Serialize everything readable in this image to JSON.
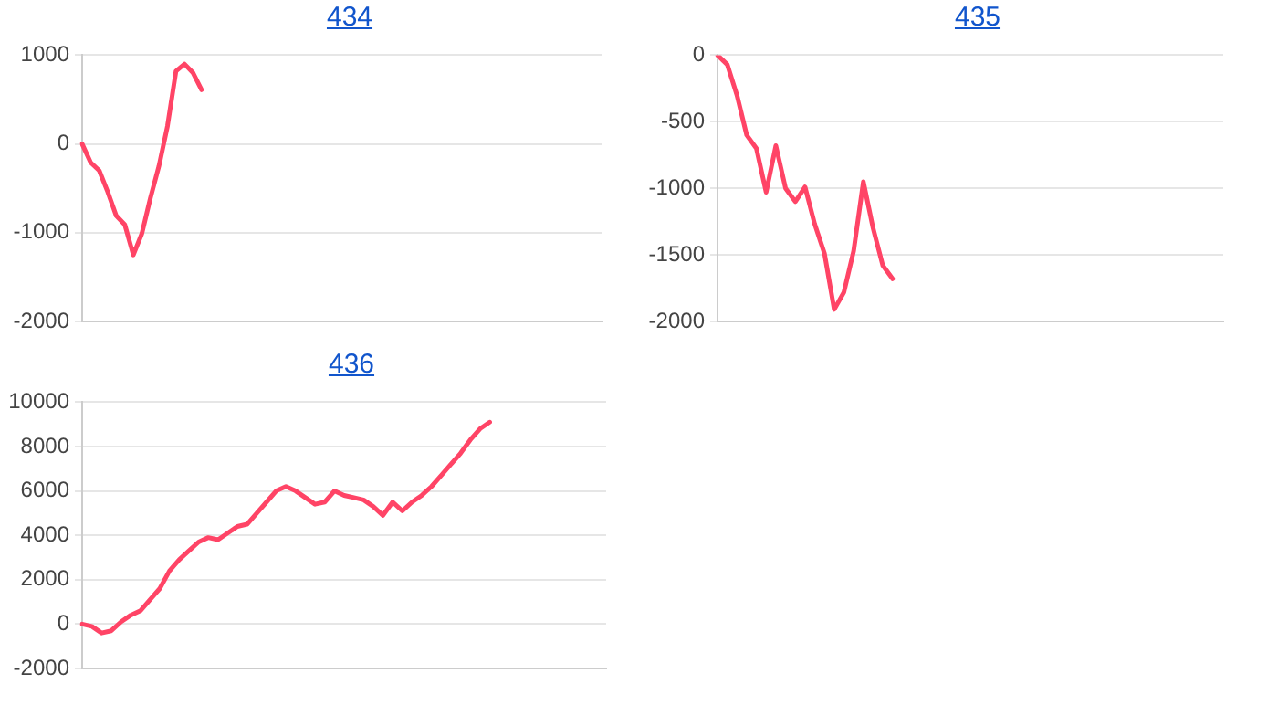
{
  "chart_data": [
    {
      "type": "line",
      "title": "434",
      "categories": [
        null,
        null,
        null,
        null,
        null,
        null,
        null,
        null,
        null,
        null,
        null,
        null,
        null,
        null,
        null,
        null,
        null,
        null,
        null,
        null,
        null,
        null,
        null,
        null,
        null,
        null,
        null,
        null,
        null,
        null,
        null,
        null,
        null,
        null,
        null,
        null,
        null,
        null,
        null,
        null,
        null,
        null,
        null,
        null,
        null,
        null,
        null,
        null,
        null,
        null,
        null,
        null,
        null,
        null,
        null,
        null,
        null,
        null,
        null,
        null,
        null,
        null
      ],
      "series": [
        {
          "color": "#ff4466",
          "values": [
            0,
            -210,
            -300,
            -540,
            -810,
            -910,
            -1250,
            -1010,
            -610,
            -250,
            200,
            820,
            900,
            800,
            610,
            null,
            null,
            null,
            null,
            null,
            null,
            null,
            null,
            null,
            null,
            null,
            null,
            null,
            null,
            null,
            null,
            null,
            null,
            null,
            null,
            null,
            null,
            null,
            null,
            null,
            null,
            null,
            null,
            null,
            null,
            null,
            null,
            null,
            null,
            null,
            null,
            null,
            null,
            null,
            null,
            null,
            null,
            null,
            null,
            null,
            null,
            null
          ]
        }
      ],
      "ylim": [
        -2000,
        1000
      ],
      "yticks": [
        -2000,
        -1000,
        0,
        1000
      ],
      "grid": "y",
      "tick_labels": "y",
      "legend": false,
      "marker": "none"
    },
    {
      "type": "line",
      "title": "435",
      "categories": [
        null,
        null,
        null,
        null,
        null,
        null,
        null,
        null,
        null,
        null,
        null,
        null,
        null,
        null,
        null,
        null,
        null,
        null,
        null,
        null,
        null,
        null,
        null,
        null,
        null,
        null,
        null,
        null,
        null,
        null,
        null,
        null,
        null,
        null,
        null,
        null,
        null,
        null,
        null,
        null,
        null,
        null,
        null,
        null,
        null,
        null,
        null,
        null,
        null,
        null,
        null,
        null,
        null
      ],
      "series": [
        {
          "color": "#ff4466",
          "values": [
            0,
            -70,
            -300,
            -600,
            -700,
            -1030,
            -680,
            -1000,
            -1100,
            -990,
            -1270,
            -1490,
            -1910,
            -1780,
            -1470,
            -950,
            -1300,
            -1580,
            -1680,
            null,
            null,
            null,
            null,
            null,
            null,
            null,
            null,
            null,
            null,
            null,
            null,
            null,
            null,
            null,
            null,
            null,
            null,
            null,
            null,
            null,
            null,
            null,
            null,
            null,
            null,
            null,
            null,
            null,
            null,
            null,
            null,
            null,
            null
          ]
        }
      ],
      "ylim": [
        -2000,
        0
      ],
      "yticks": [
        -2000,
        -1500,
        -1000,
        -500,
        0
      ],
      "grid": "y",
      "tick_labels": "y",
      "legend": false,
      "marker": "none"
    },
    {
      "type": "line",
      "title": "436",
      "categories": [
        null,
        null,
        null,
        null,
        null,
        null,
        null,
        null,
        null,
        null,
        null,
        null,
        null,
        null,
        null,
        null,
        null,
        null,
        null,
        null,
        null,
        null,
        null,
        null,
        null,
        null,
        null,
        null,
        null,
        null,
        null,
        null,
        null,
        null,
        null,
        null,
        null,
        null,
        null,
        null,
        null,
        null,
        null,
        null,
        null,
        null,
        null,
        null,
        null,
        null,
        null,
        null,
        null,
        null,
        null
      ],
      "series": [
        {
          "color": "#ff4466",
          "values": [
            0,
            -100,
            -400,
            -300,
            100,
            400,
            600,
            1100,
            1600,
            2400,
            2900,
            3300,
            3700,
            3900,
            3800,
            4100,
            4400,
            4500,
            5000,
            5500,
            6000,
            6200,
            6000,
            5700,
            5400,
            5500,
            6000,
            5800,
            5700,
            5600,
            5300,
            4900,
            5500,
            5100,
            5500,
            5800,
            6200,
            6700,
            7200,
            7700,
            8300,
            8800,
            9100,
            null,
            null,
            null,
            null,
            null,
            null,
            null,
            null,
            null,
            null,
            null,
            null
          ]
        }
      ],
      "ylim": [
        -2000,
        10000
      ],
      "yticks": [
        -2000,
        0,
        2000,
        4000,
        6000,
        8000,
        10000
      ],
      "grid": "y",
      "tick_labels": "y",
      "legend": false,
      "marker": "none"
    }
  ]
}
